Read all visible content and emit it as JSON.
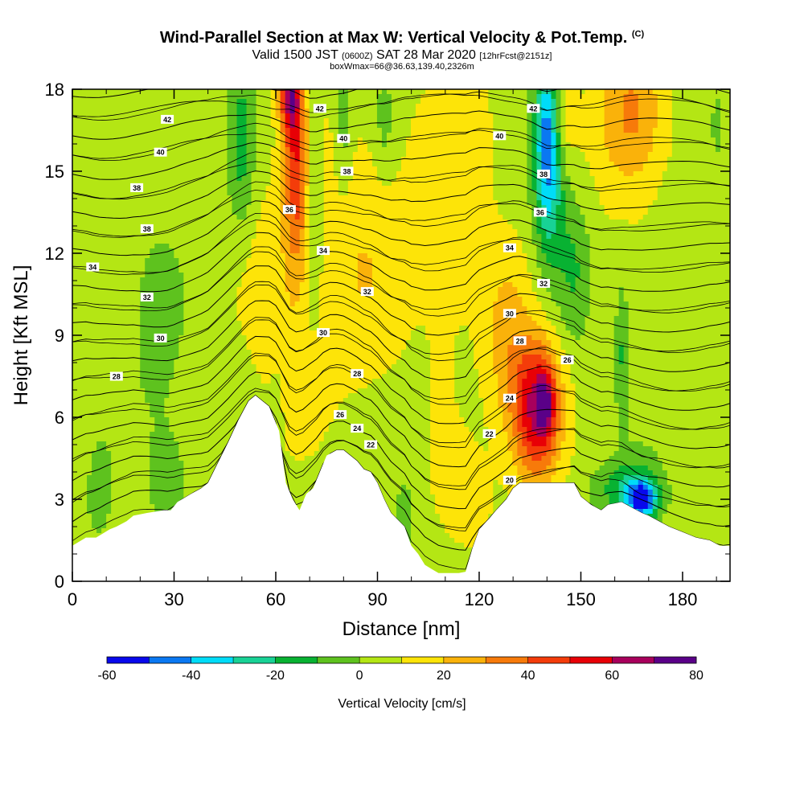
{
  "header": {
    "title": "Wind-Parallel Section at Max W: Vertical Velocity & Pot.Temp.",
    "copyright": "(C)",
    "valid_main1": "Valid 1500 JST",
    "valid_utc": "(0600Z)",
    "valid_main2": "SAT 28 Mar 2020",
    "valid_fcst": "[12hrFcst@2151z]",
    "boxline": "boxWmax=66@36.63,139.40,2326m"
  },
  "chart_data": {
    "type": "heatmap",
    "xlabel": "Distance [nm]",
    "ylabel": "Height [Kft MSL]",
    "xlim": [
      0,
      194
    ],
    "ylim": [
      0,
      18
    ],
    "x_ticks": [
      "0",
      "30",
      "60",
      "90",
      "120",
      "150",
      "180"
    ],
    "y_ticks": [
      "0",
      "3",
      "6",
      "9",
      "12",
      "15",
      "18"
    ],
    "terrain": {
      "x": [
        0,
        4,
        7,
        11,
        13,
        16,
        18,
        22,
        27,
        29,
        31,
        35,
        38,
        40,
        42,
        46,
        49,
        52,
        54,
        58,
        61,
        63,
        65,
        67,
        69,
        71,
        73,
        75,
        78,
        80,
        82,
        84,
        86,
        88,
        90,
        92,
        94,
        98,
        100,
        102,
        104,
        106,
        108,
        110,
        112,
        114,
        116,
        118,
        120,
        123,
        125,
        128,
        130,
        132,
        136,
        140,
        144,
        148,
        150,
        153,
        156,
        158,
        162,
        165,
        168,
        170,
        173,
        176,
        180,
        184,
        188,
        191,
        194
      ],
      "h": [
        1.3,
        1.6,
        1.6,
        1.9,
        2.0,
        2.2,
        2.4,
        2.5,
        2.6,
        2.6,
        2.9,
        3.2,
        3.4,
        3.6,
        4.1,
        5.1,
        5.9,
        6.6,
        6.8,
        6.4,
        5.5,
        3.6,
        3.0,
        2.6,
        3.2,
        3.4,
        4.0,
        4.6,
        4.8,
        4.8,
        4.6,
        4.4,
        4.1,
        4.0,
        3.6,
        3.0,
        2.5,
        2.0,
        1.3,
        1.0,
        0.6,
        0.45,
        0.3,
        0.3,
        0.3,
        0.3,
        0.35,
        1.2,
        1.9,
        2.3,
        2.6,
        3.0,
        3.4,
        3.6,
        3.6,
        3.6,
        3.6,
        3.6,
        3.1,
        2.8,
        2.6,
        2.8,
        2.9,
        2.7,
        2.5,
        2.4,
        2.2,
        2.0,
        1.8,
        1.6,
        1.5,
        1.3,
        1.3
      ]
    },
    "w_features": [
      {
        "x": 66,
        "h": 15.5,
        "sx": 3.5,
        "sy": 4.0,
        "w": 36
      },
      {
        "x": 64,
        "h": 18.0,
        "sx": 3.0,
        "sy": 1.6,
        "w": 48
      },
      {
        "x": 62,
        "h": 10.5,
        "sx": 12,
        "sy": 5.5,
        "w": 12
      },
      {
        "x": 85,
        "h": 12.0,
        "sx": 14,
        "sy": 6.0,
        "w": 14
      },
      {
        "x": 110,
        "h": 13.0,
        "sx": 10,
        "sy": 6.0,
        "w": 12
      },
      {
        "x": 115,
        "h": 3.0,
        "sx": 8,
        "sy": 2.0,
        "w": 14
      },
      {
        "x": 120,
        "h": 16.0,
        "sx": 6,
        "sy": 3.0,
        "w": 10
      },
      {
        "x": 137,
        "h": 6.3,
        "sx": 7,
        "sy": 2.6,
        "w": 58
      },
      {
        "x": 139.5,
        "h": 6.5,
        "sx": 2.5,
        "sy": 1.1,
        "w": 30
      },
      {
        "x": 128,
        "h": 8.5,
        "sx": 7,
        "sy": 4.0,
        "w": 18
      },
      {
        "x": 165,
        "h": 17.0,
        "sx": 10,
        "sy": 3.0,
        "w": 30
      },
      {
        "x": 145,
        "h": 17.0,
        "sx": 4,
        "sy": 1.5,
        "w": 12
      },
      {
        "x": 157,
        "h": 9.0,
        "sx": 4,
        "sy": 4.0,
        "w": 6
      },
      {
        "x": 50,
        "h": 16.0,
        "sx": 3.5,
        "sy": 3.0,
        "w": -18
      },
      {
        "x": 71,
        "h": 14.0,
        "sx": 2.5,
        "sy": 4.0,
        "w": -15
      },
      {
        "x": 80,
        "h": 16.5,
        "sx": 2.5,
        "sy": 2.5,
        "w": -14
      },
      {
        "x": 92,
        "h": 17.0,
        "sx": 2.5,
        "sy": 2.0,
        "w": -12
      },
      {
        "x": 140,
        "h": 16.5,
        "sx": 3.5,
        "sy": 2.8,
        "w": -42
      },
      {
        "x": 141,
        "h": 14.0,
        "sx": 4.5,
        "sy": 3.0,
        "w": -22
      },
      {
        "x": 148,
        "h": 11.5,
        "sx": 4.5,
        "sy": 2.5,
        "w": -12
      },
      {
        "x": 162,
        "h": 8.5,
        "sx": 2.2,
        "sy": 2.5,
        "w": -16
      },
      {
        "x": 168,
        "h": 3.0,
        "sx": 4.5,
        "sy": 0.7,
        "w": -58
      },
      {
        "x": 163,
        "h": 3.4,
        "sx": 9,
        "sy": 1.0,
        "w": -22
      },
      {
        "x": 25,
        "h": 9.0,
        "sx": 6,
        "sy": 3.0,
        "w": -10
      },
      {
        "x": 28,
        "h": 4.0,
        "sx": 6,
        "sy": 2.0,
        "w": -10
      },
      {
        "x": 8,
        "h": 2.5,
        "sx": 5,
        "sy": 2.0,
        "w": -6
      },
      {
        "x": 60,
        "h": 6.5,
        "sx": 2,
        "sy": 1.5,
        "w": -6
      },
      {
        "x": 98,
        "h": 2.5,
        "sx": 3,
        "sy": 1.5,
        "w": -8
      },
      {
        "x": 190,
        "h": 16.5,
        "sx": 3,
        "sy": 2.0,
        "w": -8
      }
    ],
    "theta_levels": [
      "20",
      "22",
      "24",
      "26",
      "28",
      "30",
      "32",
      "34",
      "36",
      "38",
      "40",
      "42"
    ],
    "contour_labels": [
      {
        "text": "42",
        "x": 28,
        "h": 16.9
      },
      {
        "text": "40",
        "x": 26,
        "h": 15.7
      },
      {
        "text": "38",
        "x": 19,
        "h": 14.4
      },
      {
        "text": "38",
        "x": 22,
        "h": 12.9
      },
      {
        "text": "34",
        "x": 6,
        "h": 11.5
      },
      {
        "text": "32",
        "x": 22,
        "h": 10.4
      },
      {
        "text": "30",
        "x": 26,
        "h": 8.9
      },
      {
        "text": "28",
        "x": 13,
        "h": 7.5
      },
      {
        "text": "42",
        "x": 73,
        "h": 17.3
      },
      {
        "text": "40",
        "x": 80,
        "h": 16.2
      },
      {
        "text": "38",
        "x": 81,
        "h": 15.0
      },
      {
        "text": "36",
        "x": 64,
        "h": 13.6
      },
      {
        "text": "34",
        "x": 74,
        "h": 12.1
      },
      {
        "text": "32",
        "x": 87,
        "h": 10.6
      },
      {
        "text": "30",
        "x": 74,
        "h": 9.1
      },
      {
        "text": "28",
        "x": 84,
        "h": 7.6
      },
      {
        "text": "26",
        "x": 79,
        "h": 6.1
      },
      {
        "text": "24",
        "x": 84,
        "h": 5.6
      },
      {
        "text": "22",
        "x": 88,
        "h": 5.0
      },
      {
        "text": "42",
        "x": 136,
        "h": 17.3
      },
      {
        "text": "40",
        "x": 126,
        "h": 16.3
      },
      {
        "text": "38",
        "x": 139,
        "h": 14.9
      },
      {
        "text": "36",
        "x": 138,
        "h": 13.5
      },
      {
        "text": "34",
        "x": 129,
        "h": 12.2
      },
      {
        "text": "32",
        "x": 139,
        "h": 10.9
      },
      {
        "text": "30",
        "x": 129,
        "h": 9.8
      },
      {
        "text": "28",
        "x": 132,
        "h": 8.8
      },
      {
        "text": "26",
        "x": 146,
        "h": 8.1
      },
      {
        "text": "24",
        "x": 129,
        "h": 6.7
      },
      {
        "text": "22",
        "x": 123,
        "h": 5.4
      },
      {
        "text": "20",
        "x": 129,
        "h": 3.7
      }
    ]
  },
  "colorbar": {
    "label": "Vertical Velocity [cm/s]",
    "ticks": [
      "-60",
      "-40",
      "-20",
      "0",
      "20",
      "40",
      "60",
      "80"
    ],
    "bins": [
      -60,
      -50,
      -40,
      -30,
      -20,
      -10,
      0,
      10,
      20,
      30,
      40,
      50,
      60,
      70,
      80
    ],
    "colors": [
      "#0808ec",
      "#0a78f2",
      "#00dcf8",
      "#18d296",
      "#08b232",
      "#5ec21e",
      "#b4e614",
      "#fde408",
      "#fab20a",
      "#f77a0a",
      "#f43c0a",
      "#e80006",
      "#a8005c",
      "#5a0088"
    ]
  }
}
